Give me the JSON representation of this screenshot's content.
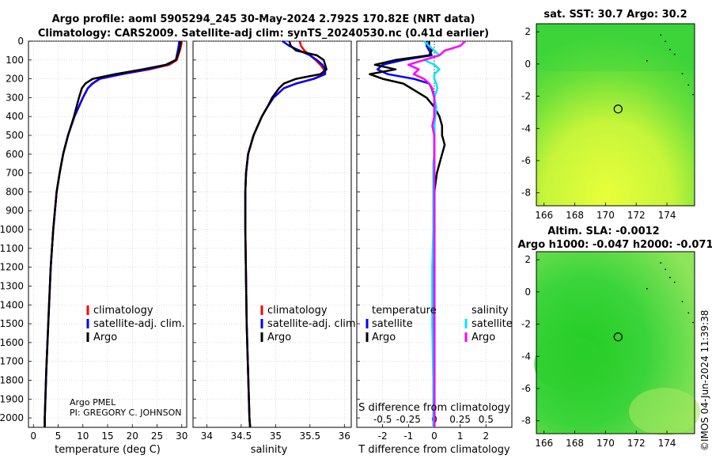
{
  "header": {
    "title_line1": "Argo profile: aoml 5905294_245 30-May-2024 2.792S 170.82E (NRT data)",
    "title_line2": "Climatology: CARS2009. Satellite-adj clim: synTS_20240530.nc (0.41d earlier)"
  },
  "footer": {
    "argo_group": "Argo PMEL",
    "pi": "PI: GREGORY C. JOHNSON",
    "watermark": "©IMOS 04-Jun-2024 11:39:38"
  },
  "colors": {
    "climatology": "#ff0000",
    "satellite": "#0000ff",
    "argo": "#000000",
    "s_satellite": "#00e5ff",
    "s_argo": "#ff00ff"
  },
  "chart_data": [
    {
      "type": "line",
      "name": "temperature",
      "xlabel": "temperature (deg C)",
      "ylabel": "",
      "xlim": [
        -1,
        31
      ],
      "ylim": [
        2050,
        0
      ],
      "xticks": [
        0,
        5,
        10,
        15,
        20,
        25,
        30
      ],
      "yticks": [
        0,
        100,
        200,
        300,
        400,
        500,
        600,
        700,
        800,
        900,
        1000,
        1100,
        1200,
        1300,
        1400,
        1500,
        1600,
        1700,
        1800,
        1900,
        2000
      ],
      "legend": [
        "climatology",
        "satellite-adj. clim.",
        "Argo"
      ],
      "depth": [
        0,
        20,
        50,
        100,
        125,
        150,
        175,
        200,
        225,
        250,
        300,
        400,
        500,
        600,
        700,
        800,
        1000,
        1200,
        1500,
        1750,
        2000,
        2050
      ],
      "series": [
        {
          "name": "climatology",
          "values": [
            30.0,
            29.9,
            29.6,
            29.0,
            27.5,
            23.5,
            18.0,
            13.5,
            12.0,
            11.0,
            10.0,
            8.3,
            7.0,
            6.0,
            5.3,
            4.7,
            4.0,
            3.5,
            3.0,
            2.6,
            2.3,
            2.3
          ]
        },
        {
          "name": "satellite-adj. clim.",
          "values": [
            29.5,
            29.4,
            29.2,
            28.8,
            27.0,
            23.0,
            17.8,
            13.3,
            11.9,
            11.0,
            10.0,
            8.3,
            7.0,
            6.0,
            5.3,
            4.7,
            4.0,
            3.5,
            3.0,
            2.6,
            2.3,
            2.3
          ]
        },
        {
          "name": "Argo",
          "values": [
            29.8,
            29.7,
            29.5,
            28.8,
            26.8,
            22.0,
            16.5,
            12.0,
            10.5,
            9.8,
            9.2,
            8.2,
            7.0,
            6.0,
            5.3,
            4.7,
            4.0,
            3.5,
            3.0,
            2.6,
            2.3,
            2.3
          ]
        }
      ]
    },
    {
      "type": "line",
      "name": "salinity",
      "xlabel": "salinity",
      "xlim": [
        33.8,
        36.1
      ],
      "ylim": [
        2050,
        0
      ],
      "xticks": [
        34,
        34.5,
        35,
        35.5,
        36
      ],
      "legend": [
        "climatology",
        "satellite-adj. clim.",
        "Argo"
      ],
      "depth": [
        0,
        25,
        50,
        75,
        100,
        125,
        150,
        175,
        200,
        225,
        250,
        300,
        350,
        400,
        500,
        600,
        700,
        800,
        1000,
        1500,
        2000,
        2050
      ],
      "series": [
        {
          "name": "climatology",
          "values": [
            35.35,
            35.37,
            35.42,
            35.5,
            35.58,
            35.65,
            35.7,
            35.7,
            35.55,
            35.3,
            35.12,
            34.97,
            34.88,
            34.8,
            34.68,
            34.6,
            34.57,
            34.56,
            34.56,
            34.58,
            34.62,
            34.63
          ]
        },
        {
          "name": "satellite-adj. clim.",
          "values": [
            35.1,
            35.2,
            35.35,
            35.5,
            35.6,
            35.68,
            35.72,
            35.72,
            35.56,
            35.3,
            35.12,
            34.97,
            34.88,
            34.8,
            34.68,
            34.6,
            34.57,
            34.56,
            34.56,
            34.58,
            34.62,
            34.63
          ]
        },
        {
          "name": "Argo",
          "values": [
            35.2,
            35.22,
            35.3,
            35.6,
            35.7,
            35.72,
            35.74,
            35.65,
            35.3,
            35.12,
            35.05,
            34.95,
            34.88,
            34.8,
            34.68,
            34.6,
            34.57,
            34.56,
            34.56,
            34.58,
            34.62,
            34.63
          ]
        }
      ]
    },
    {
      "type": "line",
      "name": "differences",
      "xlabel": "T difference from climatology",
      "xlabel_top": "S difference from climatology",
      "xlim": [
        -3,
        3
      ],
      "ylim": [
        2050,
        0
      ],
      "xticks": [
        -2,
        -1,
        0,
        1,
        2
      ],
      "xticks_s": [
        -0.5,
        -0.25,
        0,
        0.25,
        0.5
      ],
      "legend_headers": [
        "temperature",
        "salinity"
      ],
      "legend": [
        "satellite",
        "Argo",
        "satellite",
        "Argo"
      ],
      "depth": [
        0,
        25,
        50,
        75,
        100,
        125,
        150,
        175,
        200,
        225,
        250,
        300,
        350,
        400,
        450,
        500,
        550,
        600,
        650,
        700,
        800,
        1000,
        1200,
        1500,
        1800,
        2000,
        2050
      ],
      "series": [
        {
          "name": "T satellite",
          "values": [
            -0.3,
            -0.3,
            -0.2,
            -0.1,
            -1.2,
            -2.0,
            -2.2,
            -1.8,
            -0.8,
            -0.2,
            -0.1,
            0.0,
            0.0,
            0.0,
            0.0,
            0.0,
            0.0,
            0.0,
            0.0,
            0.0,
            0.0,
            0.0,
            0.0,
            0.0,
            0.0,
            0.0,
            0.0
          ]
        },
        {
          "name": "T Argo",
          "values": [
            -0.2,
            -0.2,
            -0.1,
            -0.2,
            -1.5,
            -2.3,
            -1.5,
            -2.5,
            -2.0,
            -1.2,
            -0.9,
            -0.3,
            0.0,
            0.2,
            0.3,
            0.3,
            0.4,
            0.3,
            0.2,
            0.1,
            0.0,
            0.0,
            0.0,
            0.0,
            0.0,
            0.0,
            0.0
          ]
        },
        {
          "name": "S satellite",
          "values": [
            -0.1,
            -0.05,
            0.0,
            0.05,
            -0.1,
            0.0,
            0.05,
            0.0,
            0.0,
            0.02,
            0.03,
            0.0,
            0.02,
            0.01,
            0.0,
            0.0,
            0.0,
            0.0,
            -0.01,
            -0.01,
            -0.01,
            -0.01,
            -0.02,
            -0.02,
            -0.01,
            -0.01,
            -0.01
          ]
        },
        {
          "name": "S Argo",
          "values": [
            0.3,
            0.25,
            0.1,
            0.05,
            -0.1,
            -0.25,
            -0.15,
            -0.2,
            -0.1,
            -0.05,
            -0.02,
            0.0,
            0.0,
            0.0,
            -0.02,
            0.0,
            0.0,
            0.0,
            0.0,
            0.0,
            0.0,
            0.0,
            0.0,
            0.0,
            0.0,
            0.0,
            0.0
          ]
        }
      ]
    },
    {
      "type": "heatmap",
      "name": "sst-map",
      "title": "sat. SST: 30.7 Argo: 30.2",
      "xlim": [
        165.5,
        175.8
      ],
      "ylim": [
        -8.8,
        2.5
      ],
      "xticks": [
        166,
        168,
        170,
        172,
        174
      ],
      "yticks": [
        2,
        0,
        -2,
        -4,
        -6,
        -8
      ],
      "argo_position": [
        170.82,
        -2.792
      ]
    },
    {
      "type": "heatmap",
      "name": "sla-map",
      "title_line1": "Altim. SLA: -0.0012",
      "title_line2": "Argo h1000: -0.047 h2000: -0.071",
      "xlim": [
        165.5,
        175.8
      ],
      "ylim": [
        -8.8,
        2.5
      ],
      "xticks": [
        166,
        168,
        170,
        172,
        174
      ],
      "yticks": [
        2,
        0,
        -2,
        -4,
        -6,
        -8
      ],
      "argo_position": [
        170.82,
        -2.792
      ]
    }
  ]
}
